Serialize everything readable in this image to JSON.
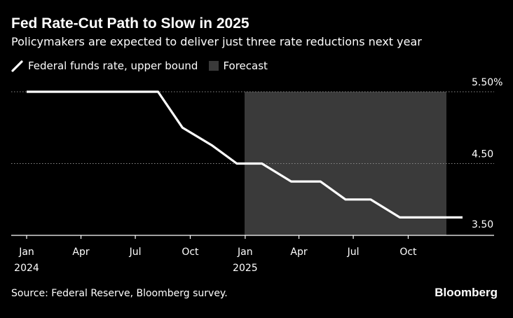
{
  "header": {
    "title": "Fed Rate-Cut Path to Slow in 2025",
    "subtitle": "Policymakers are expected to deliver just three rate reductions next year"
  },
  "legend": {
    "series_label": "Federal funds rate, upper bound",
    "forecast_label": "Forecast"
  },
  "footer": {
    "source": "Source: Federal Reserve, Bloomberg survey.",
    "brand": "Bloomberg"
  },
  "colors": {
    "background": "#000000",
    "line": "#ffffff",
    "forecast_band": "#3a3a3a",
    "grid": "#8a8a8a"
  },
  "chart_data": {
    "type": "line",
    "x_range": [
      "2024-01-01",
      "2025-12-31"
    ],
    "y_range": [
      3.5,
      5.5
    ],
    "grid": "horizontal dotted",
    "legend_placement": "top-left",
    "y_ticks": [
      {
        "value": 5.5,
        "label": "5.50%"
      },
      {
        "value": 4.5,
        "label": "4.50"
      },
      {
        "value": 3.5,
        "label": "3.50"
      }
    ],
    "x_ticks": [
      {
        "date": "2024-01-01",
        "label": "Jan",
        "sublabel": "2024"
      },
      {
        "date": "2024-04-01",
        "label": "Apr",
        "sublabel": ""
      },
      {
        "date": "2024-07-01",
        "label": "Jul",
        "sublabel": ""
      },
      {
        "date": "2024-10-01",
        "label": "Oct",
        "sublabel": ""
      },
      {
        "date": "2025-01-01",
        "label": "Jan",
        "sublabel": "2025"
      },
      {
        "date": "2025-04-01",
        "label": "Apr",
        "sublabel": ""
      },
      {
        "date": "2025-07-01",
        "label": "Jul",
        "sublabel": ""
      },
      {
        "date": "2025-10-01",
        "label": "Oct",
        "sublabel": ""
      }
    ],
    "forecast_range": [
      "2024-12-31",
      "2025-12-31"
    ],
    "series": [
      {
        "name": "Federal funds rate, upper bound",
        "points": [
          {
            "date": "2024-01-01",
            "value": 5.5
          },
          {
            "date": "2024-08-08",
            "value": 5.5
          },
          {
            "date": "2024-09-18",
            "value": 5.0
          },
          {
            "date": "2024-11-07",
            "value": 4.75
          },
          {
            "date": "2024-12-18",
            "value": 4.5
          },
          {
            "date": "2025-01-29",
            "value": 4.5
          },
          {
            "date": "2025-03-19",
            "value": 4.25
          },
          {
            "date": "2025-05-07",
            "value": 4.25
          },
          {
            "date": "2025-06-18",
            "value": 4.0
          },
          {
            "date": "2025-07-30",
            "value": 4.0
          },
          {
            "date": "2025-09-17",
            "value": 3.75
          },
          {
            "date": "2025-12-31",
            "value": 3.75
          }
        ]
      }
    ]
  }
}
